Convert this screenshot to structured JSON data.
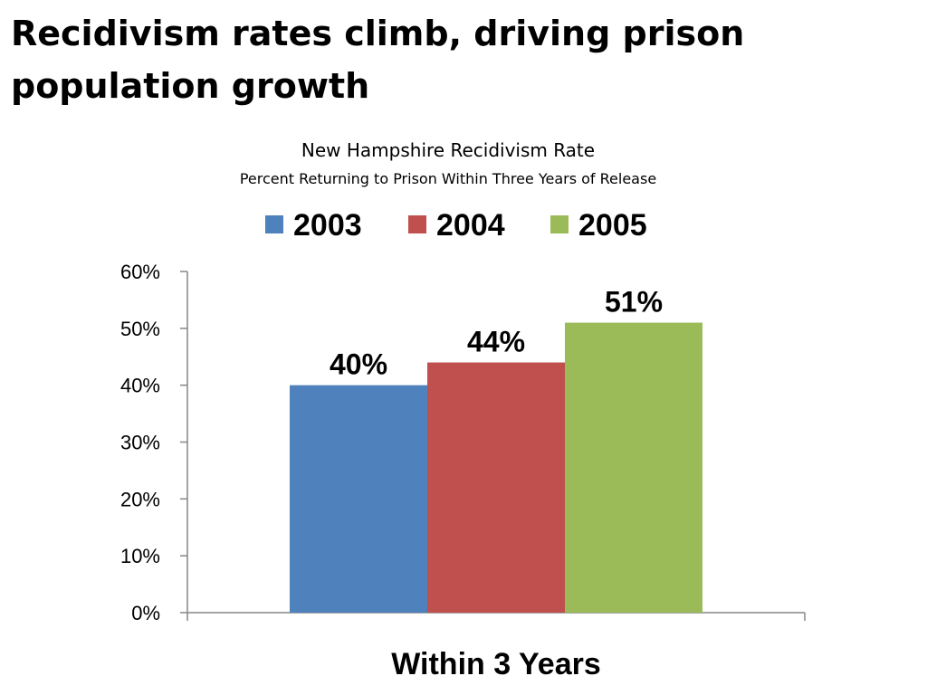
{
  "slide": {
    "title": "Recidivism rates climb, driving prison population growth"
  },
  "chart_data": {
    "type": "bar",
    "title": "New Hampshire Recidivism Rate",
    "subtitle": "Percent Returning to Prison Within Three Years of Release",
    "categories": [
      "Within 3 Years"
    ],
    "series": [
      {
        "name": "2003",
        "values": [
          40
        ],
        "label": "40%",
        "color": "#4F81BD"
      },
      {
        "name": "2004",
        "values": [
          44
        ],
        "label": "44%",
        "color": "#C0504D"
      },
      {
        "name": "2005",
        "values": [
          51
        ],
        "label": "51%",
        "color": "#9BBB59"
      }
    ],
    "ylim": [
      0,
      60
    ],
    "yticks": [
      "0%",
      "10%",
      "20%",
      "30%",
      "40%",
      "50%",
      "60%"
    ],
    "xlabel": "",
    "ylabel": "",
    "legend_position": "top",
    "grid": false
  }
}
